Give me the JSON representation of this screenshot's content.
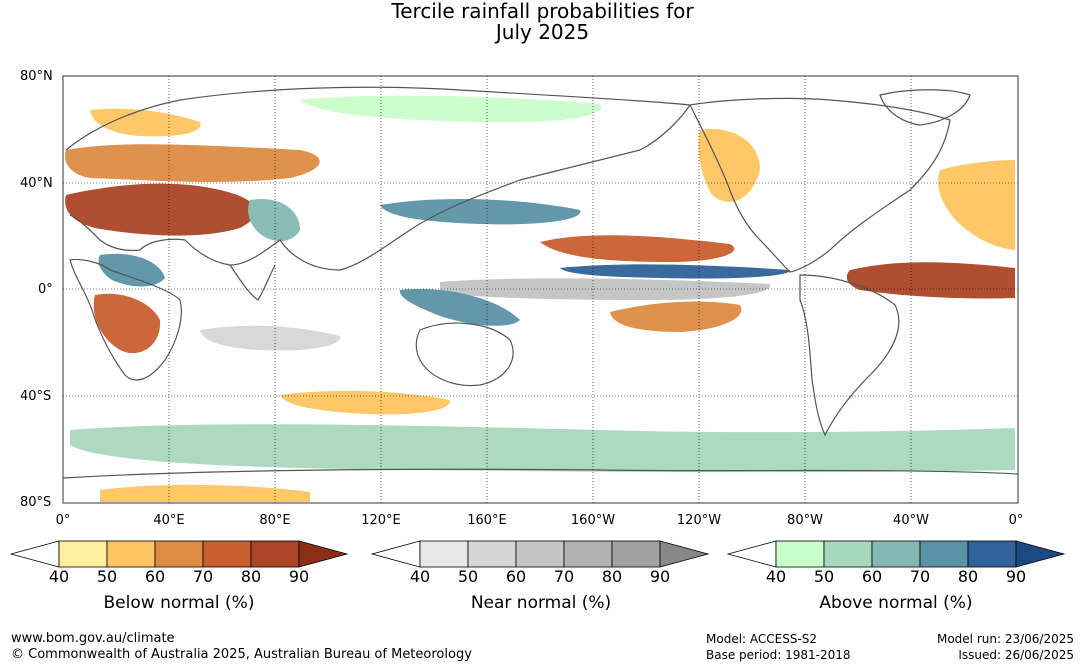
{
  "title": {
    "line1": "Tercile rainfall probabilities for",
    "line2": "July 2025"
  },
  "map": {
    "lat_labels": [
      "80°N",
      "40°N",
      "0°",
      "40°S",
      "80°S"
    ],
    "lon_labels": [
      "0°",
      "40°E",
      "80°E",
      "120°E",
      "160°E",
      "160°W",
      "120°W",
      "80°W",
      "40°W",
      "0°"
    ],
    "gridlines": true
  },
  "legends": [
    {
      "title": "Below normal (%)",
      "ticks": [
        "40",
        "50",
        "60",
        "70",
        "80",
        "90"
      ],
      "colors": [
        "#ffeda0",
        "#fec560",
        "#de8c45",
        "#c95f30",
        "#ab4525",
        "#8e2d18"
      ]
    },
    {
      "title": "Near normal (%)",
      "ticks": [
        "40",
        "50",
        "60",
        "70",
        "80",
        "90"
      ],
      "colors": [
        "#e8e8e8",
        "#d6d6d6",
        "#c4c4c4",
        "#b2b2b2",
        "#a1a1a1",
        "#888888"
      ]
    },
    {
      "title": "Above normal (%)",
      "ticks": [
        "40",
        "50",
        "60",
        "70",
        "80",
        "90"
      ],
      "colors": [
        "#c9fdc9",
        "#a8d8bc",
        "#84b8b2",
        "#5b93a6",
        "#2f6399",
        "#1b4a82"
      ]
    }
  ],
  "footer": {
    "url": "www.bom.gov.au/climate",
    "copyright": "© Commonwealth of Australia 2025, Australian Bureau of Meteorology",
    "model": "Model: ACCESS-S2",
    "base_period": "Base period: 1981-2018",
    "model_run": "Model run: 23/06/2025",
    "issued": "Issued: 26/06/2025"
  }
}
